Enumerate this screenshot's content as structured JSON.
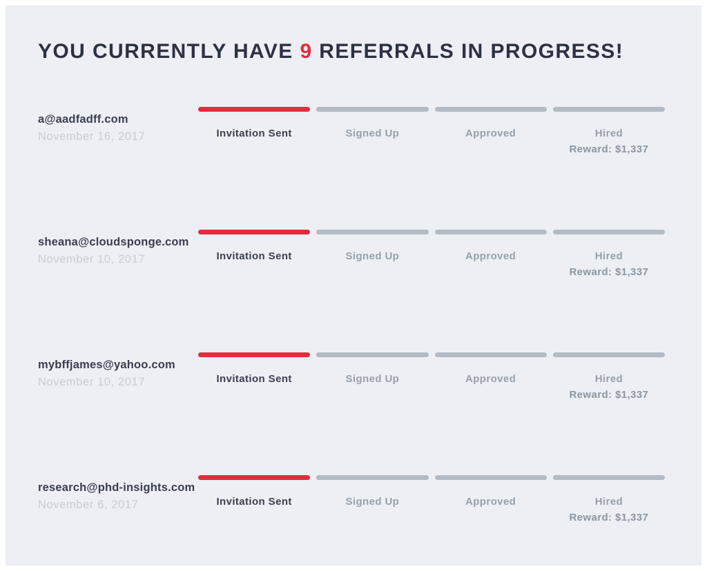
{
  "page": {
    "colors": {
      "accent_red": "#e22d3d",
      "bar_gray": "#b4bbc4",
      "panel_bg": "#edeff4",
      "title_color": "#2d3143"
    }
  },
  "header": {
    "title_before": "YOU CURRENTLY HAVE ",
    "title_count": "9",
    "title_after": " REFERRALS IN PROGRESS!"
  },
  "steps": {
    "labels": [
      "Invitation Sent",
      "Signed Up",
      "Approved",
      "Hired"
    ],
    "0": "Invitation Sent",
    "1": "Signed Up",
    "2": "Approved",
    "3": "Hired"
  },
  "referrals": [
    {
      "email": "a@aadfadff.com",
      "date": "November 16, 2017",
      "current_step": "Invitation Sent",
      "reward": "Reward: $1,337"
    },
    {
      "email": "sheana@cloudsponge.com",
      "date": "November 10, 2017",
      "current_step": "Invitation Sent",
      "reward": "Reward: $1,337"
    },
    {
      "email": "mybffjames@yahoo.com",
      "date": "November 10, 2017",
      "current_step": "Invitation Sent",
      "reward": "Reward: $1,337"
    },
    {
      "email": "research@phd-insights.com",
      "date": "November 6, 2017",
      "current_step": "Invitation Sent",
      "reward": "Reward: $1,337"
    }
  ]
}
